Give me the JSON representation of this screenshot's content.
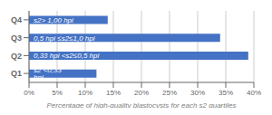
{
  "chart_data": {
    "type": "bar",
    "orientation": "horizontal",
    "categories": [
      "Q1",
      "Q2",
      "Q3",
      "Q4"
    ],
    "values": [
      12,
      39,
      34,
      14
    ],
    "annotations": [
      "s2 <0,33 hpi",
      "0,33 hpi <s2≤0,5 hpi",
      "0,5 hpi ≤s2≤1,0 hpi",
      "s2> 1,00 hpi"
    ],
    "color": "#4472C4",
    "xlabel": "Percentage of high-quality blastocysts for each s2 quartiles",
    "xlim": [
      0,
      40
    ],
    "xticks": [
      {
        "value": 0,
        "label": "0%"
      },
      {
        "value": 5,
        "label": "5%"
      },
      {
        "value": 10,
        "label": "10%"
      },
      {
        "value": 15,
        "label": "15%"
      },
      {
        "value": 20,
        "label": "20%"
      },
      {
        "value": 25,
        "label": "25%"
      },
      {
        "value": 30,
        "label": "30%"
      },
      {
        "value": 35,
        "label": "35%"
      },
      {
        "value": 40,
        "label": "40%"
      }
    ],
    "grid": true
  }
}
